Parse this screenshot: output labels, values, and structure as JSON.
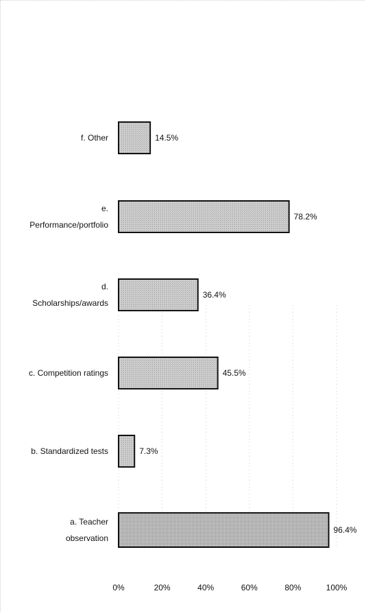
{
  "chart_data": {
    "type": "bar",
    "orientation": "horizontal",
    "categories": [
      [
        "a. Teacher",
        "observation"
      ],
      [
        "b. Standardized tests"
      ],
      [
        "c. Competition ratings"
      ],
      [
        "d.",
        "Scholarships/awards"
      ],
      [
        "e.",
        "Performance/portfolio"
      ],
      [
        "f. Other"
      ]
    ],
    "values": [
      96.4,
      7.3,
      45.5,
      36.4,
      78.2,
      14.5
    ],
    "value_labels": [
      "96.4%",
      "7.3%",
      "45.5%",
      "36.4%",
      "78.2%",
      "14.5%"
    ],
    "xlim": [
      0,
      100
    ],
    "x_ticks": [
      0,
      20,
      40,
      60,
      80,
      100
    ],
    "x_tick_labels": [
      "0%",
      "20%",
      "40%",
      "60%",
      "80%",
      "100%"
    ],
    "grid": "vertical dotted",
    "legend": "none",
    "title": "",
    "xlabel": "",
    "ylabel": "",
    "colors": {
      "bar_fill": "#c4c4c4",
      "bar_fill_dark": "#b8b8b8",
      "bar_edge": "#111111",
      "grid": "#c8c8c8"
    }
  }
}
